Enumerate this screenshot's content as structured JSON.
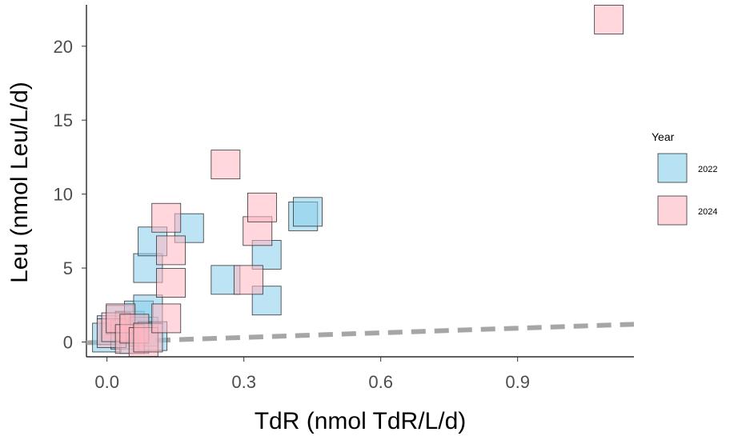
{
  "chart_data": {
    "type": "scatter",
    "xlabel": "TdR (nmol TdR/L/d)",
    "ylabel": "Leu (nmol Leu/L/d)",
    "xlim": [
      -0.045,
      1.155
    ],
    "ylim": [
      -1.0,
      22.8
    ],
    "x_ticks": [
      0.0,
      0.3,
      0.6,
      0.9
    ],
    "x_tick_labels": [
      "0.0",
      "0.3",
      "0.6",
      "0.9"
    ],
    "y_ticks": [
      0,
      5,
      10,
      15,
      20
    ],
    "y_tick_labels": [
      "0",
      "5",
      "10",
      "15",
      "20"
    ],
    "grid": false,
    "legend_position": "right",
    "legend": {
      "title": "Year",
      "entries": [
        {
          "label": "2022",
          "color": "#87CEEB"
        },
        {
          "label": "2024",
          "color": "#FFB6C1"
        }
      ]
    },
    "marker": "square",
    "series": [
      {
        "name": "2022",
        "color": "#87CEEB",
        "points": [
          [
            0.0,
            0.3
          ],
          [
            0.01,
            0.8
          ],
          [
            0.03,
            1.5
          ],
          [
            0.04,
            0.5
          ],
          [
            0.05,
            1.1
          ],
          [
            0.06,
            0.2
          ],
          [
            0.07,
            1.8
          ],
          [
            0.08,
            0.7
          ],
          [
            0.09,
            2.2
          ],
          [
            0.1,
            0.4
          ],
          [
            0.09,
            5.0
          ],
          [
            0.1,
            6.8
          ],
          [
            0.18,
            7.7
          ],
          [
            0.26,
            4.2
          ],
          [
            0.35,
            5.9
          ],
          [
            0.35,
            2.8
          ],
          [
            0.43,
            8.5
          ],
          [
            0.44,
            8.8
          ]
        ]
      },
      {
        "name": "2024",
        "color": "#FFB6C1",
        "points": [
          [
            0.01,
            0.6
          ],
          [
            0.02,
            1.0
          ],
          [
            0.03,
            1.6
          ],
          [
            0.05,
            0.2
          ],
          [
            0.06,
            0.9
          ],
          [
            0.08,
            0.0
          ],
          [
            0.09,
            0.3
          ],
          [
            0.13,
            8.4
          ],
          [
            0.14,
            6.2
          ],
          [
            0.14,
            4.0
          ],
          [
            0.13,
            1.6
          ],
          [
            0.26,
            12.0
          ],
          [
            0.31,
            4.2
          ],
          [
            0.33,
            7.5
          ],
          [
            0.34,
            9.1
          ],
          [
            1.1,
            21.8
          ]
        ]
      }
    ],
    "trend_line": {
      "style": "dashed",
      "color": "#A6A6A6",
      "x": [
        -0.045,
        1.155
      ],
      "y": [
        -0.05,
        1.2
      ]
    }
  }
}
